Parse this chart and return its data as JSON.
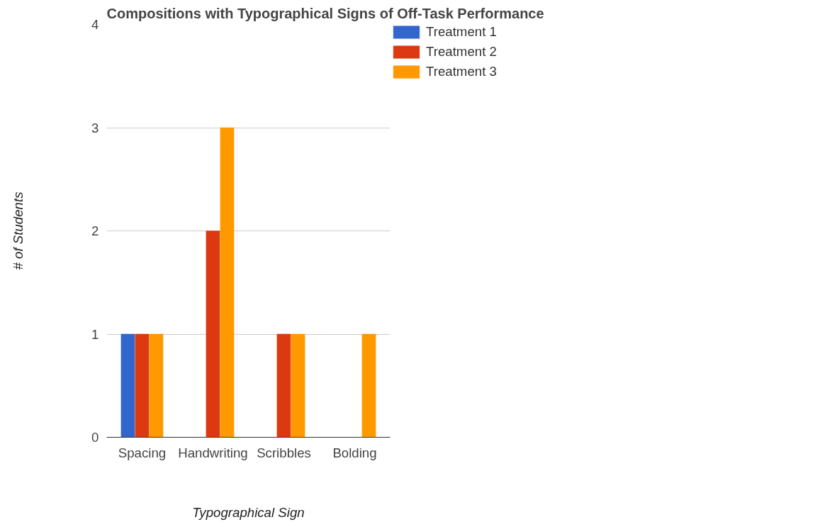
{
  "chart_data": {
    "type": "bar",
    "title": "Compositions with Typographical Signs of Off-Task Performance",
    "xlabel": "Typographical Sign",
    "ylabel": "# of Students",
    "categories": [
      "Spacing",
      "Handwriting",
      "Scribbles",
      "Bolding"
    ],
    "series": [
      {
        "name": "Treatment 1",
        "color": "#3366cc",
        "values": [
          1,
          0,
          0,
          0
        ]
      },
      {
        "name": "Treatment 2",
        "color": "#dc3912",
        "values": [
          1,
          2,
          1,
          0
        ]
      },
      {
        "name": "Treatment 3",
        "color": "#ff9900",
        "values": [
          1,
          3,
          1,
          1
        ]
      }
    ],
    "ylim": [
      0,
      4
    ],
    "yticks": [
      0,
      1,
      2,
      3,
      4
    ],
    "grid": "y",
    "legend": "top right"
  }
}
